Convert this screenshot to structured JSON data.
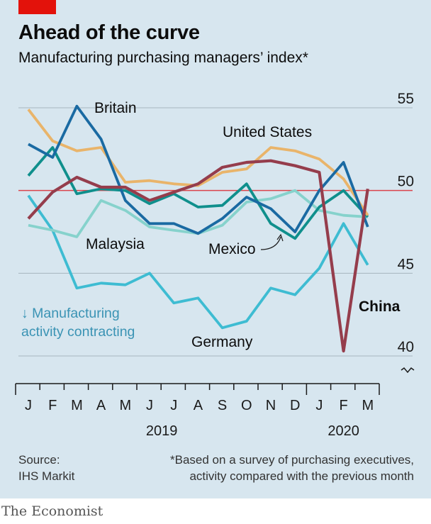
{
  "header": {
    "title": "Ahead of the curve",
    "subtitle": "Manufacturing purchasing managers’ index*"
  },
  "footer": {
    "source_lines": [
      "Source:",
      "IHS Markit"
    ],
    "note_lines": [
      "*Based on a survey of purchasing executives,",
      "activity compared with the previous month"
    ],
    "brand": "The Economist"
  },
  "colors": {
    "britain": "#1a6aa2",
    "united_states": "#e9b46a",
    "mexico": "#0f8f8c",
    "malaysia": "#86d2cc",
    "germany": "#3ebcd2",
    "china": "#953d4c",
    "threshold": "#db444b",
    "grid": "#a7b6bf",
    "annotation": "#3a93b4"
  },
  "chart_data": {
    "type": "line",
    "categories": [
      "J",
      "F",
      "M",
      "A",
      "M",
      "J",
      "J",
      "A",
      "S",
      "O",
      "N",
      "D",
      "J",
      "F",
      "M"
    ],
    "year_labels": [
      {
        "label": "2019",
        "index": 5.5
      },
      {
        "label": "2020",
        "index": 13
      }
    ],
    "ylim": [
      40,
      55
    ],
    "yticks": [
      40,
      45,
      50,
      55
    ],
    "threshold": 50,
    "annotation_lines": [
      "↓ Manufacturing",
      "activity contracting"
    ],
    "series": [
      {
        "key": "britain",
        "name": "Britain",
        "values": [
          52.8,
          52.0,
          55.1,
          53.1,
          49.4,
          48.0,
          48.0,
          47.4,
          48.3,
          49.6,
          48.9,
          47.5,
          50.0,
          51.7,
          47.8
        ]
      },
      {
        "key": "united_states",
        "name": "United States",
        "values": [
          54.9,
          53.0,
          52.4,
          52.6,
          50.5,
          50.6,
          50.4,
          50.3,
          51.1,
          51.3,
          52.6,
          52.4,
          51.9,
          50.7,
          48.5
        ]
      },
      {
        "key": "mexico",
        "name": "Mexico",
        "values": [
          50.9,
          52.6,
          49.8,
          50.1,
          50.0,
          49.2,
          49.8,
          49.0,
          49.1,
          50.4,
          48.0,
          47.1,
          49.0,
          50.0,
          48.4
        ]
      },
      {
        "key": "malaysia",
        "name": "Malaysia",
        "values": [
          47.9,
          47.6,
          47.2,
          49.4,
          48.8,
          47.8,
          47.6,
          47.4,
          47.9,
          49.3,
          49.5,
          50.0,
          48.8,
          48.5,
          48.4
        ]
      },
      {
        "key": "germany",
        "name": "Germany",
        "values": [
          49.7,
          47.6,
          44.1,
          44.4,
          44.3,
          45.0,
          43.2,
          43.5,
          41.7,
          42.1,
          44.1,
          43.7,
          45.3,
          48.0,
          45.5
        ]
      },
      {
        "key": "china",
        "name": "China",
        "values": [
          48.3,
          49.9,
          50.8,
          50.2,
          50.2,
          49.4,
          49.9,
          50.4,
          51.4,
          51.7,
          51.8,
          51.5,
          51.1,
          40.3,
          50.1
        ]
      }
    ]
  }
}
